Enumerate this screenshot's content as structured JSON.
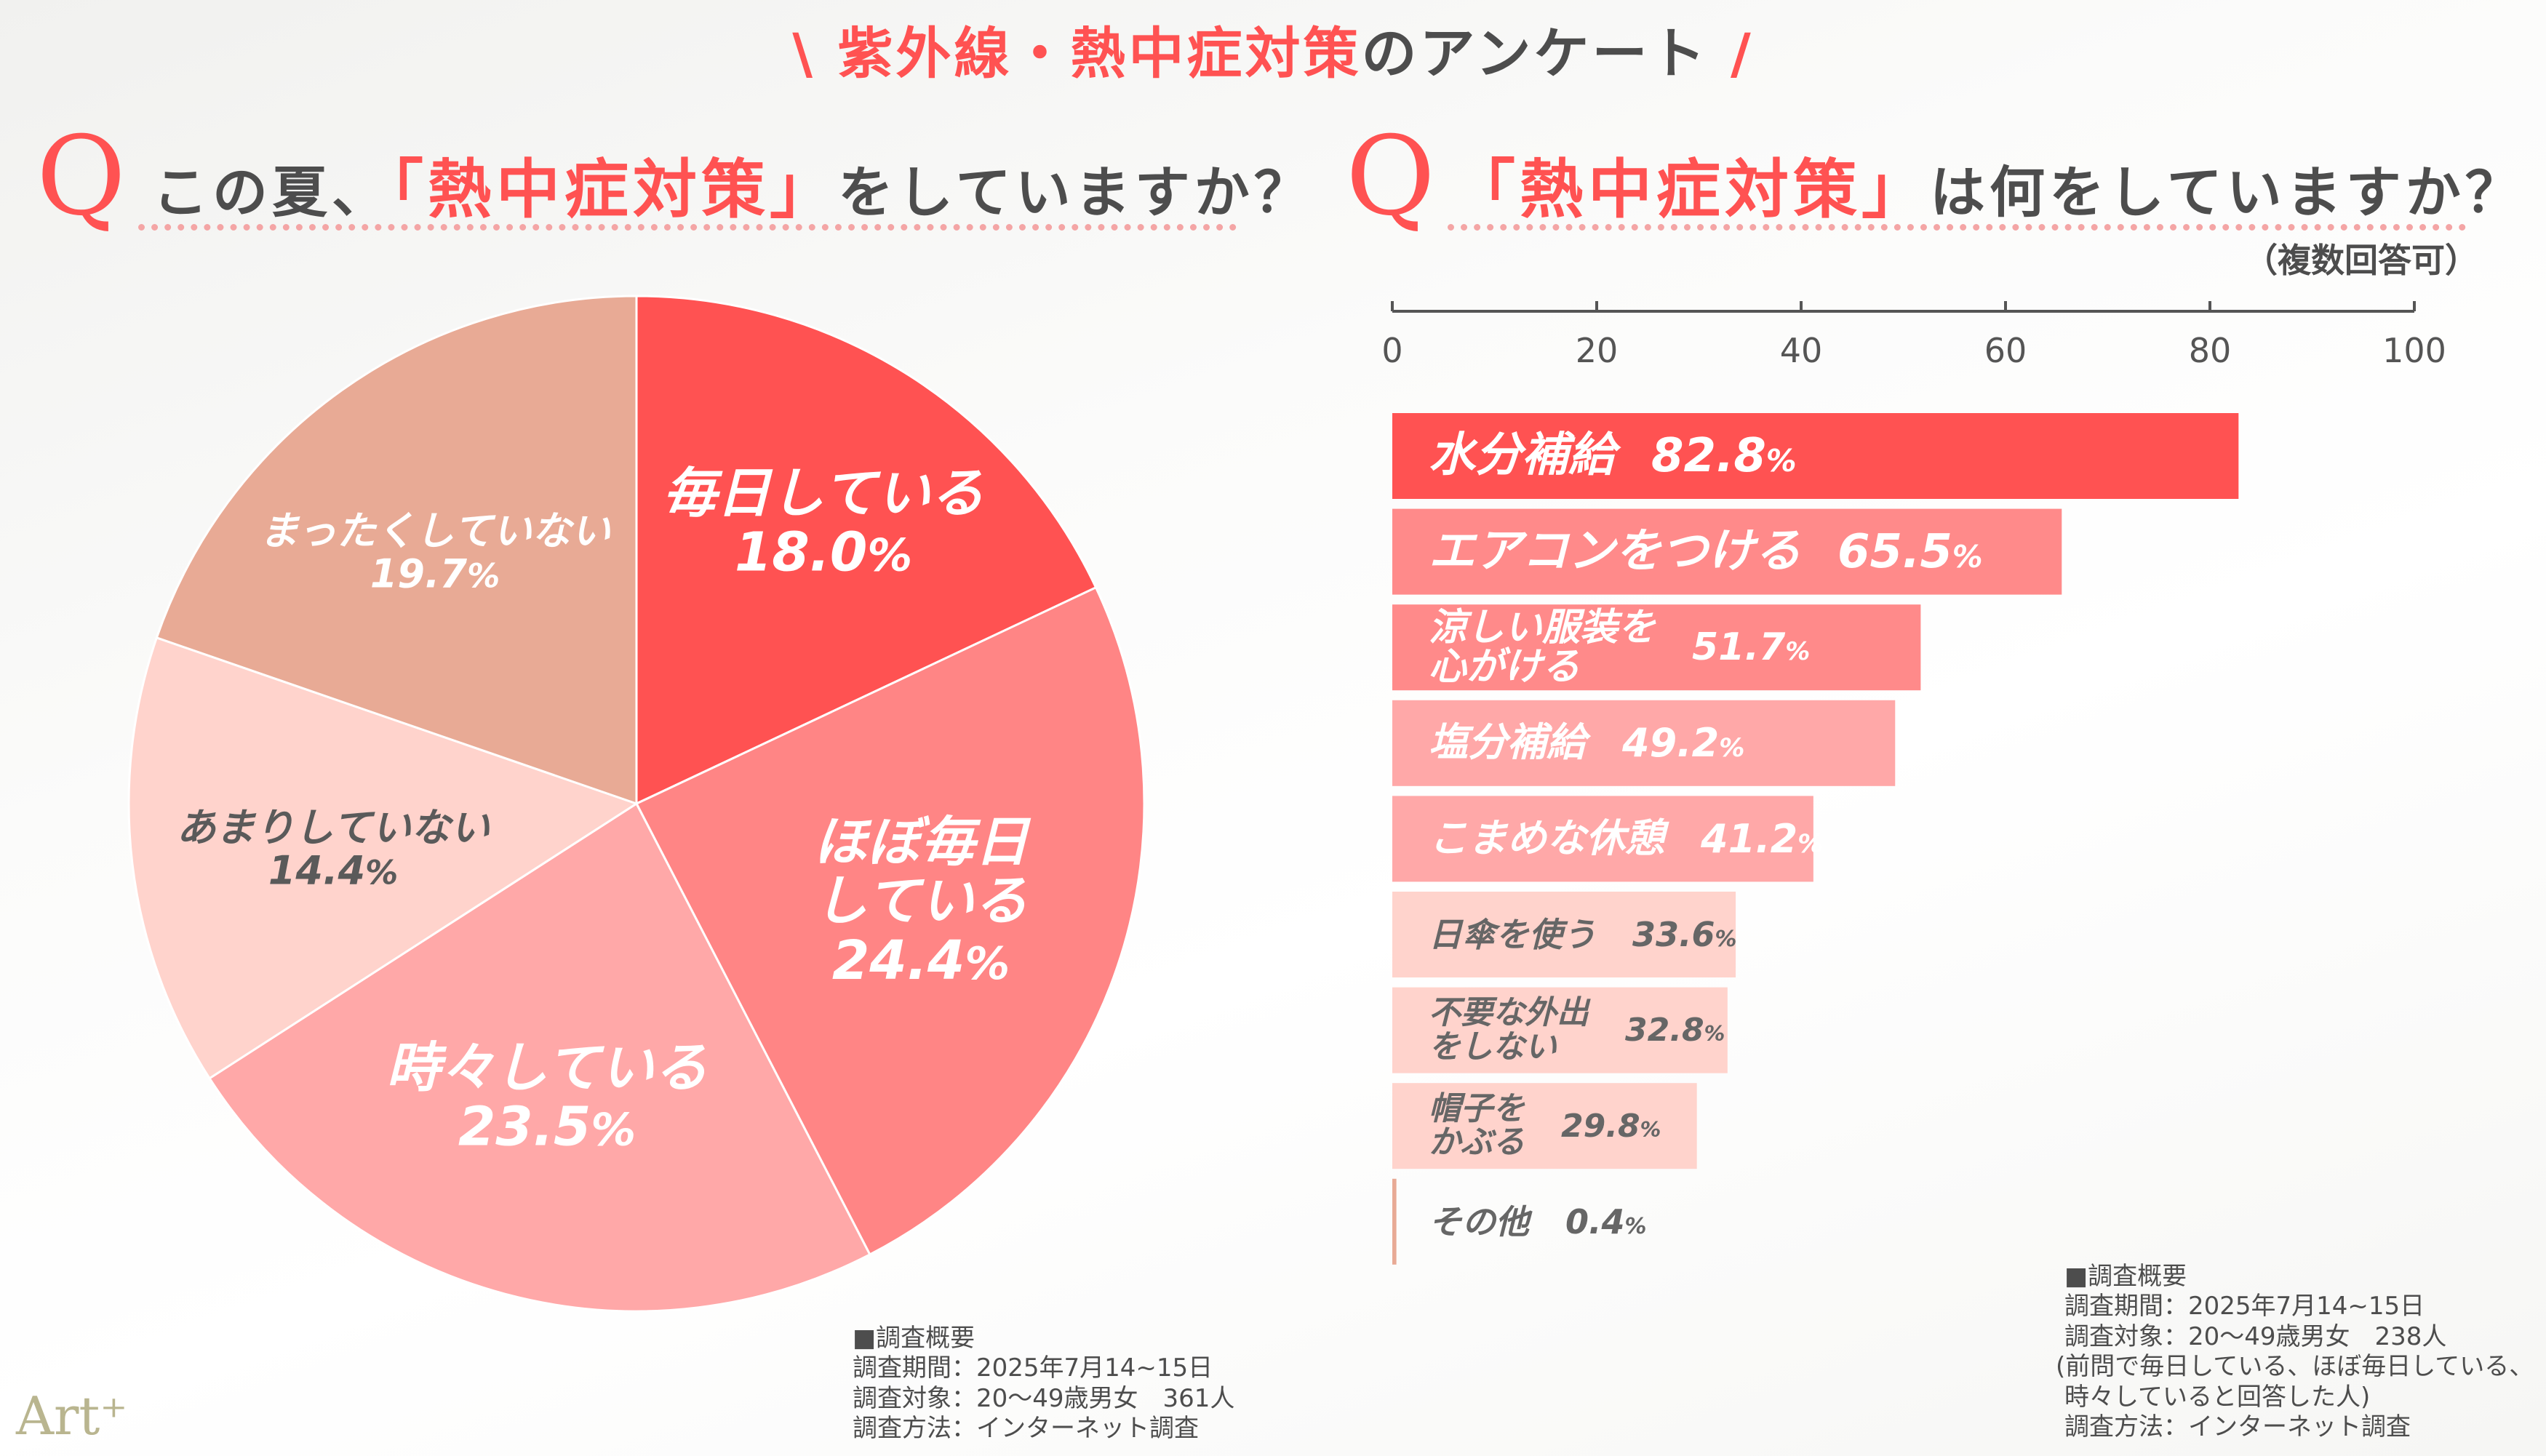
{
  "header": {
    "slash_left": "\\",
    "title_red": "紫外線・熱中症対策",
    "title_rest": "のアンケート",
    "slash_right": "/"
  },
  "left": {
    "q_mark": "Q",
    "question_pre": "この夏、",
    "question_red": "「熱中症対策」",
    "question_post": "をしていますか？",
    "survey": {
      "heading": "■調査概要",
      "period": "調査期間：2025年7月14~15日",
      "target": "調査対象：20〜49歳男女　361人",
      "method": "調査方法：インターネット調査"
    }
  },
  "right": {
    "q_mark": "Q",
    "question_red": "「熱中症対策」",
    "question_post": "は何をしていますか？",
    "note": "（複数回答可）",
    "survey": {
      "heading": "■調査概要",
      "period": "調査期間：2025年7月14~15日",
      "target": "調査対象：20〜49歳男女　238人",
      "target_note1": "(前問で毎日している、ほぼ毎日している、",
      "target_note2": "時々していると回答した人)",
      "method": "調査方法：インターネット調査"
    }
  },
  "logo": "Art⁺",
  "chart_data": [
    {
      "type": "pie",
      "unit": "%",
      "start": "top, clockwise",
      "slices": [
        {
          "label": "毎日している",
          "value": 18.0,
          "display": "18.0",
          "color": "#ff5252"
        },
        {
          "label": "ほぼ毎日している",
          "value": 24.4,
          "display": "24.4",
          "color": "#ff8585"
        },
        {
          "label": "時々している",
          "value": 23.5,
          "display": "23.5",
          "color": "#ffa8a8"
        },
        {
          "label": "あまりしていない",
          "value": 14.4,
          "display": "14.4",
          "color": "#ffd3cc"
        },
        {
          "label": "まったくしていない",
          "value": 19.7,
          "display": "19.7",
          "color": "#e8aa95"
        }
      ]
    },
    {
      "type": "bar",
      "orientation": "horizontal",
      "unit": "%",
      "xlim": [
        0,
        100
      ],
      "ticks": [
        "0",
        "20",
        "40",
        "60",
        "80",
        "100"
      ],
      "categories": [
        "水分補給",
        "エアコンをつける",
        "涼しい服装を心がける",
        "塩分補給",
        "こまめな休憩",
        "日傘を使う",
        "不要な外出をしない",
        "帽子をかぶる",
        "その他"
      ],
      "label_lines": [
        [
          "水分補給"
        ],
        [
          "エアコンをつける"
        ],
        [
          "涼しい服装を",
          "心がける"
        ],
        [
          "塩分補給"
        ],
        [
          "こまめな休憩"
        ],
        [
          "日傘を使う"
        ],
        [
          "不要な外出",
          "をしない"
        ],
        [
          "帽子を",
          "かぶる"
        ],
        [
          "その他"
        ]
      ],
      "values": [
        82.8,
        65.5,
        51.7,
        49.2,
        41.2,
        33.6,
        32.8,
        29.8,
        0.4
      ],
      "display": [
        "82.8",
        "65.5",
        "51.7",
        "49.2",
        "41.2",
        "33.6",
        "32.8",
        "29.8",
        "0.4"
      ],
      "colors": [
        "#ff5252",
        "#ff8a8a",
        "#ff8a8a",
        "#ffa8a8",
        "#ffa8a8",
        "#ffd3cc",
        "#ffd3cc",
        "#ffd3cc",
        "#e8aa95"
      ],
      "text_colors": [
        "#ffffff",
        "#ffffff",
        "#ffffff",
        "#ffffff",
        "#ffffff",
        "#666666",
        "#666666",
        "#666666",
        "#666666"
      ]
    }
  ]
}
